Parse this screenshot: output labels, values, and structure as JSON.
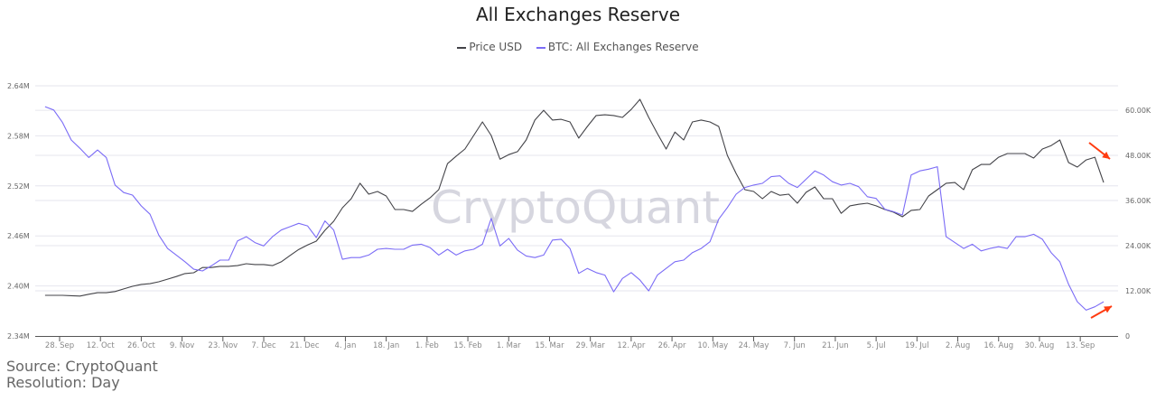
{
  "chart_data": {
    "type": "line",
    "title": "All Exchanges Reserve",
    "watermark": "CryptoQuant",
    "legend_position": "top",
    "grid": true,
    "x_tick_labels": [
      "28. Sep",
      "12. Oct",
      "26. Oct",
      "9. Nov",
      "23. Nov",
      "7. Dec",
      "21. Dec",
      "4. Jan",
      "18. Jan",
      "1. Feb",
      "15. Feb",
      "1. Mar",
      "15. Mar",
      "29. Mar",
      "12. Apr",
      "26. Apr",
      "10. May",
      "24. May",
      "7. Jun",
      "21. Jun",
      "5. Jul",
      "19. Jul",
      "2. Aug",
      "16. Aug",
      "30. Aug",
      "13. Sep"
    ],
    "left_axis": {
      "ticks": [
        "2.34M",
        "2.40M",
        "2.46M",
        "2.52M",
        "2.58M",
        "2.64M"
      ],
      "range": [
        2.34,
        2.64
      ],
      "unit": "M"
    },
    "right_axis": {
      "ticks": [
        "0",
        "12.00K",
        "24.00K",
        "36.00K",
        "48.00K",
        "60.00K"
      ],
      "range": [
        0,
        66.5
      ],
      "unit": "K"
    },
    "x": [
      "2020-09-23",
      "2020-09-26",
      "2020-09-29",
      "2020-10-02",
      "2020-10-05",
      "2020-10-08",
      "2020-10-11",
      "2020-10-14",
      "2020-10-17",
      "2020-10-20",
      "2020-10-23",
      "2020-10-26",
      "2020-10-29",
      "2020-11-01",
      "2020-11-04",
      "2020-11-07",
      "2020-11-10",
      "2020-11-13",
      "2020-11-16",
      "2020-11-19",
      "2020-11-22",
      "2020-11-25",
      "2020-11-28",
      "2020-12-01",
      "2020-12-04",
      "2020-12-07",
      "2020-12-10",
      "2020-12-13",
      "2020-12-16",
      "2020-12-19",
      "2020-12-22",
      "2020-12-25",
      "2020-12-28",
      "2020-12-31",
      "2021-01-03",
      "2021-01-06",
      "2021-01-09",
      "2021-01-12",
      "2021-01-15",
      "2021-01-18",
      "2021-01-21",
      "2021-01-24",
      "2021-01-27",
      "2021-01-30",
      "2021-02-02",
      "2021-02-05",
      "2021-02-08",
      "2021-02-11",
      "2021-02-14",
      "2021-02-17",
      "2021-02-20",
      "2021-02-23",
      "2021-02-26",
      "2021-03-01",
      "2021-03-04",
      "2021-03-07",
      "2021-03-10",
      "2021-03-13",
      "2021-03-16",
      "2021-03-19",
      "2021-03-22",
      "2021-03-25",
      "2021-03-28",
      "2021-03-31",
      "2021-04-03",
      "2021-04-06",
      "2021-04-09",
      "2021-04-12",
      "2021-04-15",
      "2021-04-18",
      "2021-04-21",
      "2021-04-24",
      "2021-04-27",
      "2021-04-30",
      "2021-05-03",
      "2021-05-06",
      "2021-05-09",
      "2021-05-12",
      "2021-05-15",
      "2021-05-18",
      "2021-05-21",
      "2021-05-24",
      "2021-05-27",
      "2021-05-30",
      "2021-06-02",
      "2021-06-05",
      "2021-06-08",
      "2021-06-11",
      "2021-06-14",
      "2021-06-17",
      "2021-06-20",
      "2021-06-23",
      "2021-06-26",
      "2021-06-29",
      "2021-07-02",
      "2021-07-05",
      "2021-07-08",
      "2021-07-11",
      "2021-07-14",
      "2021-07-17",
      "2021-07-20",
      "2021-07-23",
      "2021-07-26",
      "2021-07-29",
      "2021-08-01",
      "2021-08-04",
      "2021-08-07",
      "2021-08-10",
      "2021-08-13",
      "2021-08-16",
      "2021-08-19",
      "2021-08-22",
      "2021-08-25",
      "2021-08-28",
      "2021-08-31",
      "2021-09-03",
      "2021-09-06",
      "2021-09-09",
      "2021-09-12",
      "2021-09-15",
      "2021-09-18",
      "2021-09-21"
    ],
    "series": [
      {
        "name": "Price USD",
        "axis": "right",
        "color": "#434348",
        "unit": "K",
        "values": [
          10.8,
          10.8,
          10.8,
          10.7,
          10.6,
          11.1,
          11.5,
          11.5,
          11.8,
          12.5,
          13.2,
          13.7,
          13.9,
          14.4,
          15.1,
          15.8,
          16.6,
          16.8,
          18.2,
          18.2,
          18.5,
          18.5,
          18.7,
          19.2,
          19.0,
          19.0,
          18.7,
          19.7,
          21.4,
          23.0,
          24.2,
          25.2,
          28.1,
          30.5,
          34.1,
          36.5,
          40.6,
          37.7,
          38.4,
          37.2,
          33.6,
          33.6,
          33.1,
          35.0,
          36.7,
          38.9,
          45.8,
          47.8,
          49.7,
          53.3,
          56.9,
          53.3,
          47.0,
          48.2,
          49.0,
          52.1,
          57.4,
          60.0,
          57.4,
          57.6,
          56.9,
          52.6,
          55.7,
          58.6,
          58.8,
          58.6,
          58.1,
          60.2,
          62.9,
          58.1,
          53.8,
          49.7,
          54.2,
          52.1,
          56.9,
          57.4,
          56.9,
          55.7,
          48.0,
          43.2,
          38.9,
          38.4,
          36.5,
          38.4,
          37.4,
          37.7,
          35.3,
          38.2,
          39.6,
          36.5,
          36.5,
          32.6,
          34.6,
          35.0,
          35.3,
          34.6,
          33.6,
          32.9,
          31.7,
          33.4,
          33.6,
          37.2,
          38.9,
          40.6,
          40.8,
          38.9,
          44.2,
          45.6,
          45.6,
          47.5,
          48.5,
          48.5,
          48.5,
          47.3,
          49.7,
          50.6,
          52.1,
          46.1,
          44.9,
          46.8,
          47.5,
          40.8
        ]
      },
      {
        "name": "BTC: All Exchanges Reserve",
        "axis": "left",
        "color": "#7b6cf6",
        "unit": "M",
        "values": [
          2.615,
          2.611,
          2.596,
          2.575,
          2.565,
          2.554,
          2.563,
          2.554,
          2.521,
          2.512,
          2.509,
          2.496,
          2.486,
          2.461,
          2.445,
          2.437,
          2.429,
          2.42,
          2.418,
          2.424,
          2.431,
          2.431,
          2.454,
          2.459,
          2.452,
          2.448,
          2.459,
          2.467,
          2.471,
          2.475,
          2.472,
          2.458,
          2.478,
          2.467,
          2.432,
          2.434,
          2.434,
          2.437,
          2.444,
          2.445,
          2.444,
          2.444,
          2.449,
          2.45,
          2.446,
          2.437,
          2.444,
          2.437,
          2.442,
          2.444,
          2.45,
          2.481,
          2.448,
          2.457,
          2.443,
          2.436,
          2.434,
          2.437,
          2.455,
          2.456,
          2.445,
          2.415,
          2.421,
          2.416,
          2.413,
          2.393,
          2.409,
          2.416,
          2.407,
          2.394,
          2.413,
          2.421,
          2.429,
          2.431,
          2.44,
          2.445,
          2.453,
          2.48,
          2.494,
          2.51,
          2.518,
          2.521,
          2.523,
          2.531,
          2.532,
          2.523,
          2.518,
          2.528,
          2.538,
          2.533,
          2.525,
          2.521,
          2.523,
          2.519,
          2.507,
          2.505,
          2.492,
          2.489,
          2.485,
          2.533,
          2.538,
          2.54,
          2.543,
          2.459,
          2.452,
          2.445,
          2.45,
          2.442,
          2.445,
          2.447,
          2.445,
          2.459,
          2.459,
          2.462,
          2.456,
          2.44,
          2.429,
          2.402,
          2.381,
          2.371,
          2.375,
          2.381
        ]
      }
    ],
    "annotations": [
      {
        "type": "arrow",
        "direction": "down-right",
        "target": "Price USD",
        "color": "#ff3b10"
      },
      {
        "type": "arrow",
        "direction": "up-right",
        "target": "BTC: All Exchanges Reserve",
        "color": "#ff3b10"
      }
    ]
  },
  "footer": {
    "source": "Source: CryptoQuant",
    "resolution": "Resolution: Day"
  }
}
